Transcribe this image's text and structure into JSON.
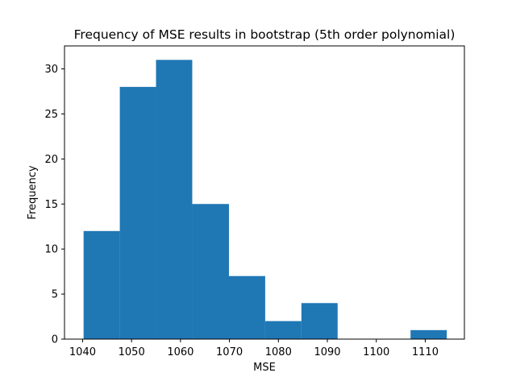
{
  "chart_data": {
    "type": "bar",
    "title": "Frequency of MSE results in bootstrap (5th order polynomial)",
    "xlabel": "MSE",
    "ylabel": "Frequency",
    "xlim": [
      1036.3,
      1118.0
    ],
    "ylim": [
      0,
      32.55
    ],
    "xticks": [
      1040,
      1050,
      1060,
      1070,
      1080,
      1090,
      1100,
      1110
    ],
    "yticks": [
      0,
      5,
      10,
      15,
      20,
      25,
      30
    ],
    "bin_edges": [
      1040.2,
      1047.6,
      1055.0,
      1062.4,
      1069.9,
      1077.3,
      1084.7,
      1092.1,
      1099.6,
      1107.0,
      1114.4
    ],
    "counts": [
      12,
      28,
      31,
      15,
      7,
      2,
      4,
      0,
      0,
      1
    ],
    "bar_color": "#1f77b4",
    "grid": false,
    "legend": "none"
  }
}
